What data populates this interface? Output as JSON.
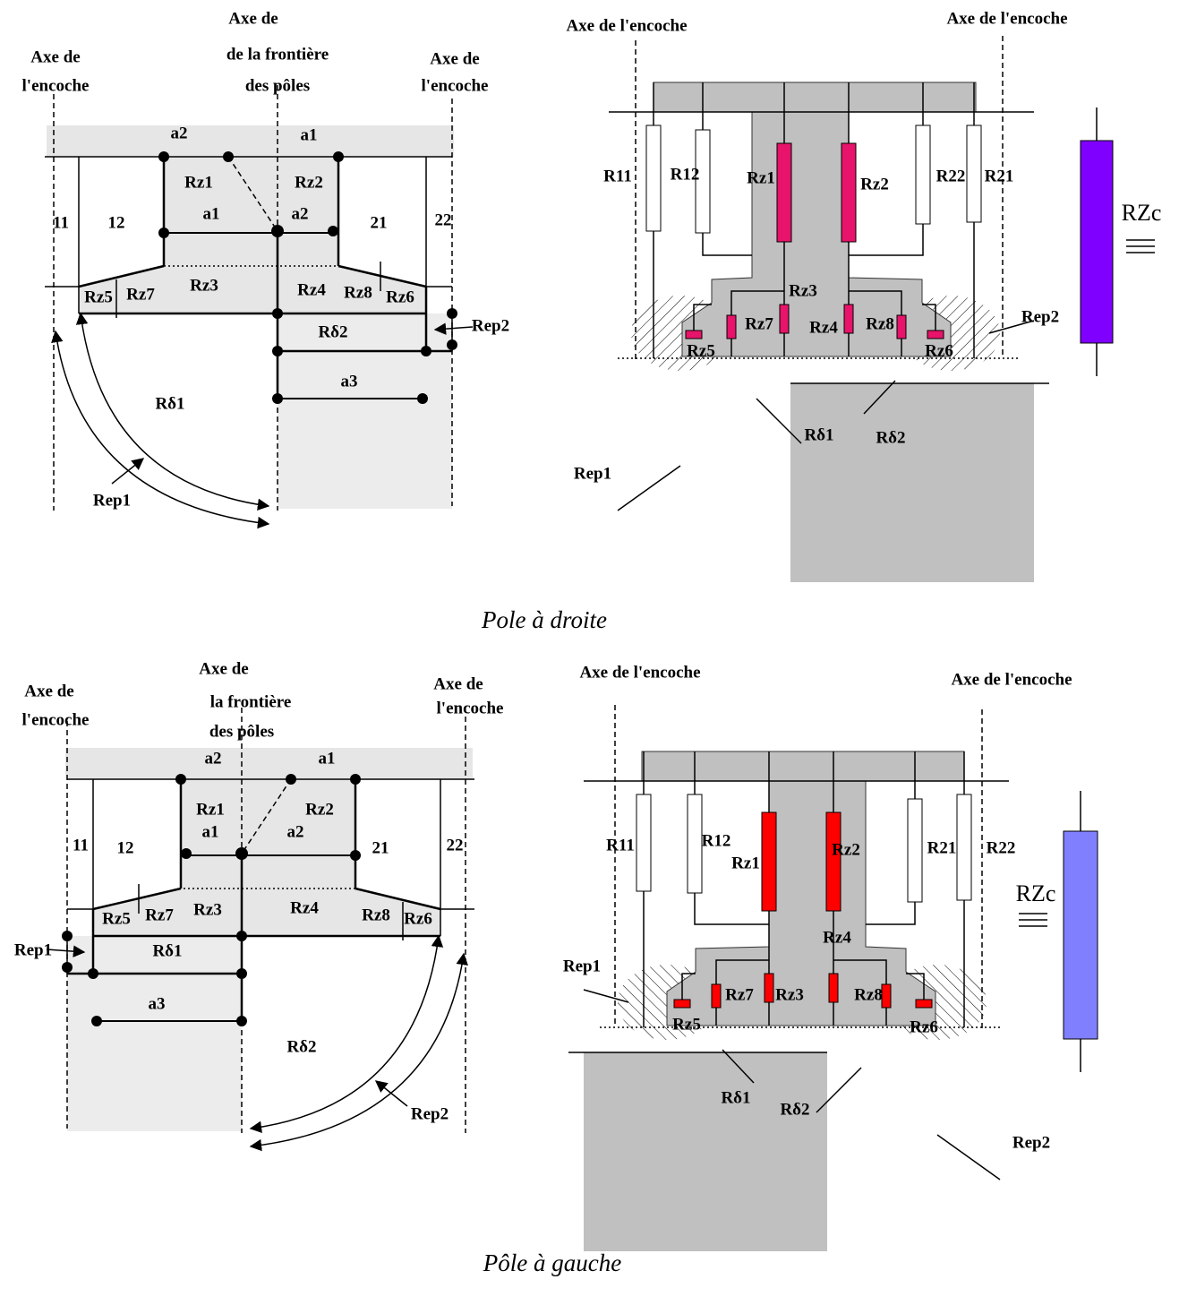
{
  "top_figure": {
    "left_diagram": {
      "labels": [
        "Axe de",
        "de la frontière",
        "des pôles",
        "Axe de",
        "l'encoche",
        "Axe de",
        "l'encoche",
        "a2",
        "a1",
        "Rz1",
        "a1",
        "Rz2",
        "a2",
        "11",
        "12",
        "21",
        "22",
        "Rz5",
        "Rz7",
        "Rz3",
        "Rz4",
        "Rz8",
        "Rz6",
        "Rδ2",
        "Rep2",
        "a3",
        "Rδ1",
        "Rep1"
      ]
    },
    "right_diagram": {
      "labels": [
        "Axe de l'encoche",
        "Axe de l'encoche",
        "R11",
        "R12",
        "Rz1",
        "Rz2",
        "R22",
        "R21",
        "RZc",
        "Rz3",
        "Rz7",
        "Rz4",
        "Rz8",
        "Rz5",
        "Rz6",
        "Rep2",
        "Rδ1",
        "Rδ2",
        "Rep1"
      ]
    },
    "caption": "Pole à droite"
  },
  "bottom_figure": {
    "left_diagram": {
      "labels": [
        "Axe de",
        "l'encoche",
        "Axe de",
        "la frontière",
        "des pôles",
        "Axe de",
        "l'encoche",
        "a2",
        "a1",
        "Rz1",
        "Rz2",
        "a1",
        "a2",
        "11",
        "12",
        "21",
        "22",
        "Rz5",
        "Rz7",
        "Rz3",
        "Rz4",
        "Rz8",
        "Rz6",
        "Rep1",
        "Rδ1",
        "a3",
        "Rδ2",
        "Rep2"
      ]
    },
    "right_diagram": {
      "labels": [
        "Axe de l'encoche",
        "Axe de l'encoche",
        "R11",
        "R12",
        "Rz1",
        "Rz2",
        "R21",
        "R22",
        "RZc",
        "Rz4",
        "Rep1",
        "Rz7",
        "Rz3",
        "Rz8",
        "Rz5",
        "Rz6",
        "Rδ1",
        "Rδ2",
        "Rep2"
      ]
    },
    "caption": "Pôle à gauche"
  }
}
